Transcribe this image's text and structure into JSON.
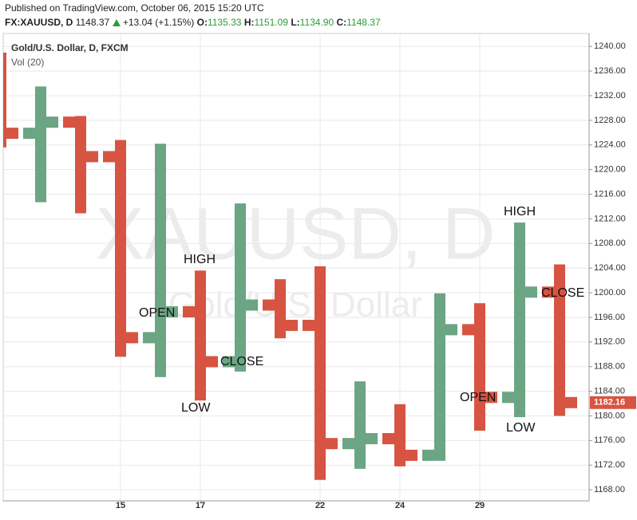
{
  "header": {
    "published": "Published on TradingView.com, October 06, 2015 15:20 UTC",
    "symbol": "FX:XAUUSD, D",
    "last": "1148.37",
    "change": "+13.04 (+1.15%)",
    "ohlc": [
      {
        "label": "O:",
        "value": "1135.33"
      },
      {
        "label": "H:",
        "value": "1151.09"
      },
      {
        "label": "L:",
        "value": "1134.90"
      },
      {
        "label": "C:",
        "value": "1148.37"
      }
    ]
  },
  "chart_data": {
    "type": "ohlc",
    "title": "Gold/U.S. Dollar, D, FXCM",
    "subtitle": "Vol (20)",
    "watermark": "XAUUSD, D",
    "watermark_sub": "Gold/U.S. Dollar",
    "categories": [
      null,
      null,
      null,
      "15",
      null,
      "17",
      null,
      null,
      "22",
      null,
      "24",
      null,
      "29",
      null,
      null
    ],
    "open": [
      1227,
      1225.9,
      1227.7,
      1222.1,
      1192.7,
      1196.9,
      1188.8,
      1198.0,
      1194.7,
      1175.5,
      1176.3,
      1173.6,
      1194.0,
      1183.0,
      1200.1
    ],
    "high": [
      1239,
      1233.5,
      1228.7,
      1224.8,
      1224.2,
      1203.6,
      1214.5,
      1202.2,
      1204.3,
      1185.6,
      1181.9,
      1199.9,
      1198.3,
      1211.4,
      1204.6
    ],
    "low": [
      1223.6,
      1214.7,
      1212.9,
      1189.6,
      1186.3,
      1182.5,
      1187.2,
      1192.6,
      1169.6,
      1171.4,
      1171.8,
      1172.7,
      1177.6,
      1179.8,
      1180.0
    ],
    "close": [
      1225.9,
      1227.7,
      1222.1,
      1192.7,
      1196.9,
      1188.8,
      1198.0,
      1194.7,
      1175.5,
      1176.3,
      1173.6,
      1194.0,
      1183.0,
      1200.1,
      1182.16
    ],
    "up_color": "#6ba583",
    "down_color": "#d75442",
    "annotations": [
      "HIGH",
      "OPEN",
      "CLOSE",
      "LOW",
      "HIGH",
      "CLOSE",
      "OPEN",
      "LOW"
    ],
    "ylim": [
      1166.2,
      1242.1
    ],
    "yticks": [
      {
        "value": 1168,
        "label": "1168.00"
      },
      {
        "value": 1172,
        "label": "1172.00"
      },
      {
        "value": 1176,
        "label": "1176.00"
      },
      {
        "value": 1180,
        "label": "1180.00"
      },
      {
        "value": 1184,
        "label": "1184.00"
      },
      {
        "value": 1188,
        "label": "1188.00"
      },
      {
        "value": 1192,
        "label": "1192.00"
      },
      {
        "value": 1196,
        "label": "1196.00"
      },
      {
        "value": 1200,
        "label": "1200.00"
      },
      {
        "value": 1204,
        "label": "1204.00"
      },
      {
        "value": 1208,
        "label": "1208.00"
      },
      {
        "value": 1212,
        "label": "1212.00"
      },
      {
        "value": 1216,
        "label": "1216.00"
      },
      {
        "value": 1220,
        "label": "1220.00"
      },
      {
        "value": 1224,
        "label": "1224.00"
      },
      {
        "value": 1228,
        "label": "1228.00"
      },
      {
        "value": 1232,
        "label": "1232.00"
      },
      {
        "value": 1236,
        "label": "1236.00"
      },
      {
        "value": 1240,
        "label": "1240.00"
      }
    ],
    "grid": true
  }
}
